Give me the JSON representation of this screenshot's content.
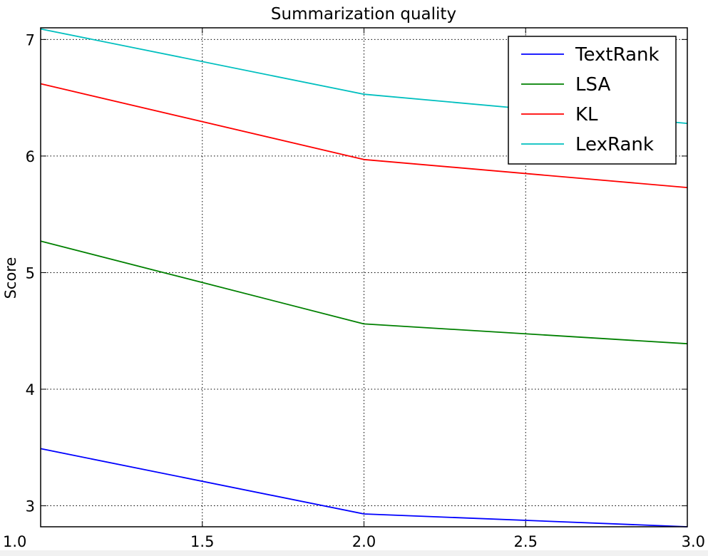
{
  "chart_data": {
    "type": "line",
    "title": "Summarization quality",
    "xlabel": "",
    "ylabel": "Score",
    "xlim": [
      1.0,
      3.0
    ],
    "ylim": [
      2.82,
      7.1
    ],
    "xticks": [
      1.0,
      1.5,
      2.0,
      2.5,
      3.0
    ],
    "xtick_labels": [
      "1.0",
      "1.5",
      "2.0",
      "2.5",
      "3.0"
    ],
    "yticks": [
      3,
      4,
      5,
      6,
      7
    ],
    "ytick_labels": [
      "3",
      "4",
      "5",
      "6",
      "7"
    ],
    "grid": true,
    "legend_position": "top-right",
    "x": [
      1.0,
      2.0,
      3.0
    ],
    "series": [
      {
        "name": "TextRank",
        "color": "#0000ff",
        "values": [
          3.49,
          2.93,
          2.82
        ]
      },
      {
        "name": "LSA",
        "color": "#008000",
        "values": [
          5.27,
          4.56,
          4.39
        ]
      },
      {
        "name": "KL",
        "color": "#ff0000",
        "values": [
          6.62,
          5.97,
          5.73
        ]
      },
      {
        "name": "LexRank",
        "color": "#00bfbf",
        "values": [
          7.09,
          6.53,
          6.28
        ]
      }
    ]
  }
}
